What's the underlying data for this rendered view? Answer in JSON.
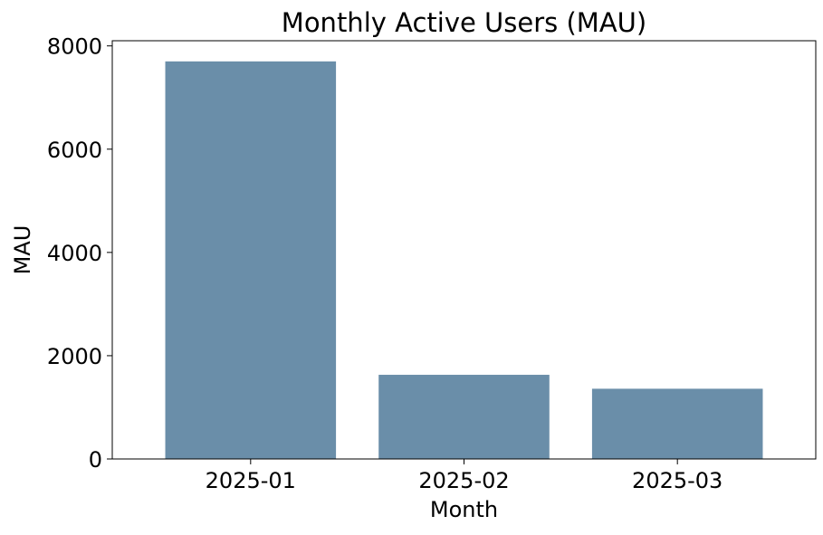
{
  "chart_data": {
    "type": "bar",
    "title": "Monthly Active Users (MAU)",
    "xlabel": "Month",
    "ylabel": "MAU",
    "categories": [
      "2025-01",
      "2025-02",
      "2025-03"
    ],
    "values": [
      7700,
      1630,
      1360
    ],
    "ylim": [
      0,
      8100
    ],
    "yticks": [
      0,
      2000,
      4000,
      6000,
      8000
    ],
    "grid": false,
    "legend": "none",
    "bar_color": "#6a8ea9"
  }
}
